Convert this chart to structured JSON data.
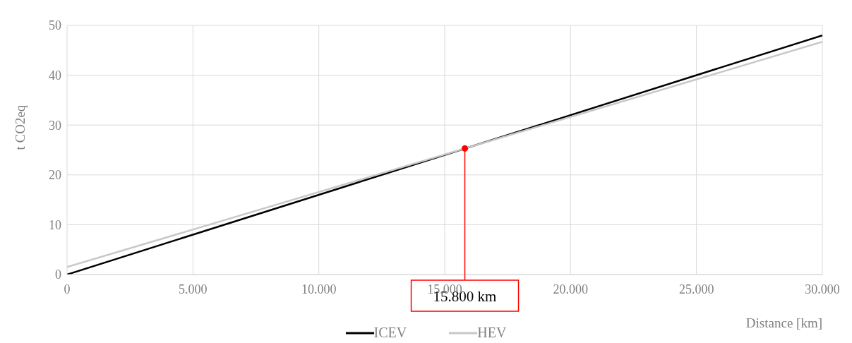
{
  "chart_data": {
    "type": "line",
    "xlabel": "Distance [km]",
    "ylabel": "t CO2eq",
    "xlim": [
      0,
      30000
    ],
    "xticks": [
      0,
      {
        "value": 5000,
        "label": "5.000"
      },
      {
        "value": 10000,
        "label": "10.000"
      },
      {
        "value": 15000,
        "label": "15.000"
      },
      {
        "value": 20000,
        "label": "20.000"
      },
      {
        "value": 25000,
        "label": "25.000"
      },
      {
        "value": 30000,
        "label": "30.000"
      }
    ],
    "ylim": [
      0,
      50
    ],
    "yticks": [
      0,
      10,
      20,
      30,
      40,
      50
    ],
    "grid": true,
    "legend": "bottom",
    "marker": "none",
    "line_style": "solid",
    "series": [
      {
        "name": "ICEV",
        "color": "#000000",
        "x": [
          0,
          30000
        ],
        "values": [
          0,
          48
        ]
      },
      {
        "name": "HEV",
        "color": "#c8c8c8",
        "x": [
          0,
          30000
        ],
        "values": [
          1.5,
          46.7
        ]
      },
      {
        "type": "scatter",
        "color": "#ff0000",
        "marker": "circle",
        "x": [
          15800
        ],
        "values": [
          25.3
        ]
      }
    ],
    "annotations": [
      {
        "text": "15.800 km",
        "x": 15800,
        "y": 25.3
      }
    ]
  }
}
